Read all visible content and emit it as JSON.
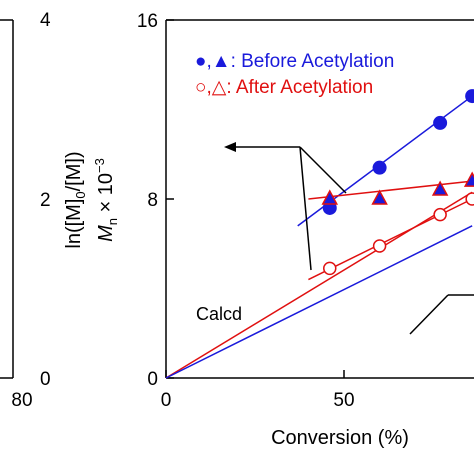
{
  "chart_data": [
    {
      "type": "line",
      "panel": "left (partially visible)",
      "x_tick_labels": [
        "80"
      ],
      "y2label_parts": {
        "ln": "ln([M]",
        "sub": "0",
        "rest": "/[M])"
      },
      "y2lim": [
        0,
        4
      ],
      "y2_ticks": [
        "0",
        "2",
        "4"
      ]
    },
    {
      "type": "scatter",
      "panel": "right",
      "xlabel": "Conversion (%)",
      "ylabel_parts": {
        "M": "M",
        "sub": "n",
        "times": " × 10",
        "sup": "−3"
      },
      "xlim": [
        0,
        100
      ],
      "ylim": [
        0,
        16
      ],
      "x_ticks": [
        "0",
        "50"
      ],
      "y_ticks": [
        "0",
        "8",
        "16"
      ],
      "legend": {
        "before": {
          "symbols": "●,▲",
          "label": ": Before Acetylation",
          "color": "#1a1adb"
        },
        "after": {
          "symbols": "○,△",
          "label": ": After Acetylation",
          "color": "#e01010"
        }
      },
      "calcd_label": "Calcd",
      "series": [
        {
          "name": "Before Acetylation (Mn)",
          "marker": "circle-filled",
          "color": "#1a1adb",
          "x": [
            46,
            60,
            77,
            86
          ],
          "y": [
            7.6,
            9.4,
            11.4,
            12.6
          ]
        },
        {
          "name": "After Acetylation (Mn)",
          "marker": "circle-open",
          "color": "#e01010",
          "x": [
            46,
            60,
            77,
            86
          ],
          "y": [
            4.9,
            5.9,
            7.3,
            8.0
          ]
        },
        {
          "name": "Before Acetylation (ln)",
          "marker": "triangle-filled",
          "color": "#1a1adb",
          "x": [
            46,
            60,
            77,
            86
          ],
          "y": [
            2.0,
            2.0,
            2.1,
            2.2
          ]
        },
        {
          "name": "After Acetylation (ln)",
          "marker": "triangle-open",
          "color": "#e01010",
          "x": [
            46,
            60,
            77,
            86
          ],
          "y": [
            2.0,
            2.0,
            2.1,
            2.2
          ]
        }
      ],
      "lines": [
        {
          "name": "fit-before",
          "color": "#1a1adb",
          "x": [
            37,
            86
          ],
          "y": [
            6.8,
            12.6
          ]
        },
        {
          "name": "fit-after",
          "color": "#e01010",
          "x": [
            40,
            86
          ],
          "y": [
            4.4,
            8.0
          ]
        },
        {
          "name": "calcd-red",
          "color": "#e01010",
          "x": [
            0,
            86
          ],
          "y": [
            0,
            8.3
          ]
        },
        {
          "name": "calcd-blue",
          "color": "#1a1adb",
          "x": [
            0,
            86
          ],
          "y": [
            0,
            6.8
          ]
        },
        {
          "name": "ln-fit",
          "color": "#e01010",
          "x": [
            40,
            86
          ],
          "y": [
            2.0,
            2.2
          ]
        }
      ]
    }
  ]
}
